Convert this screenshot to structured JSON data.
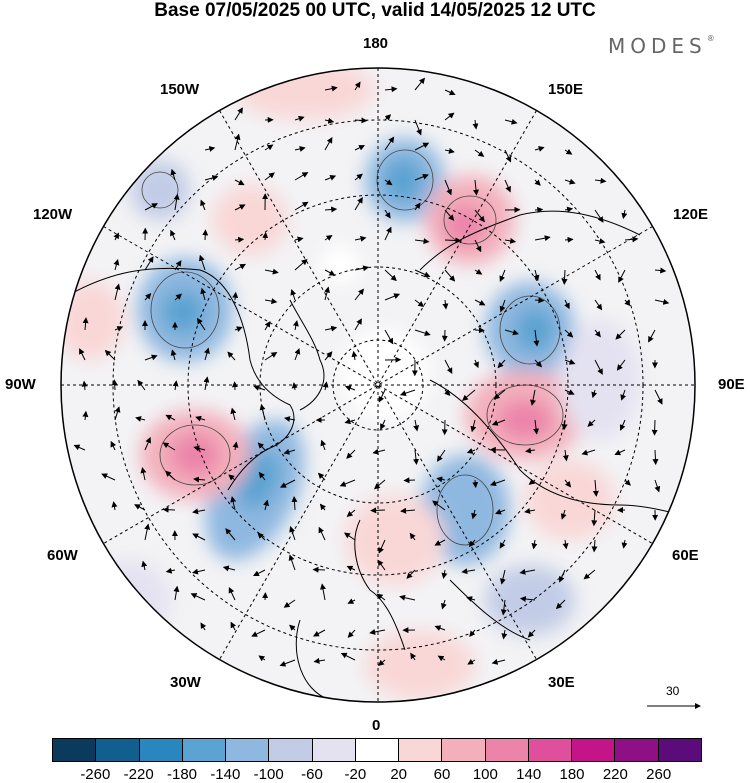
{
  "title": "Base 07/05/2025 00 UTC, valid 14/05/2025 12 UTC",
  "brand": "MODES",
  "brand_mark": "®",
  "lon_labels": {
    "top": "180",
    "bottom": "0",
    "left": "90W",
    "right": "90E",
    "nw1": "150W",
    "nw2": "120W",
    "ne1": "150E",
    "ne2": "120E",
    "sw1": "60W",
    "sw2": "30W",
    "se1": "60E",
    "se2": "30E"
  },
  "vector_reference": "30",
  "colorbar": {
    "colors": [
      "#0a3a5c",
      "#105f8e",
      "#2a86be",
      "#5aa3d2",
      "#8fb8e0",
      "#c2cce6",
      "#e4e2f1",
      "#ffffff",
      "#f9d7d7",
      "#f3b0bc",
      "#ec84aa",
      "#e04f9e",
      "#c4148a",
      "#8f0f84",
      "#5b0b7a"
    ],
    "labels": [
      "-260",
      "-220",
      "-180",
      "-140",
      "-100",
      "-60",
      "-20",
      "20",
      "60",
      "100",
      "140",
      "180",
      "220",
      "260"
    ]
  }
}
